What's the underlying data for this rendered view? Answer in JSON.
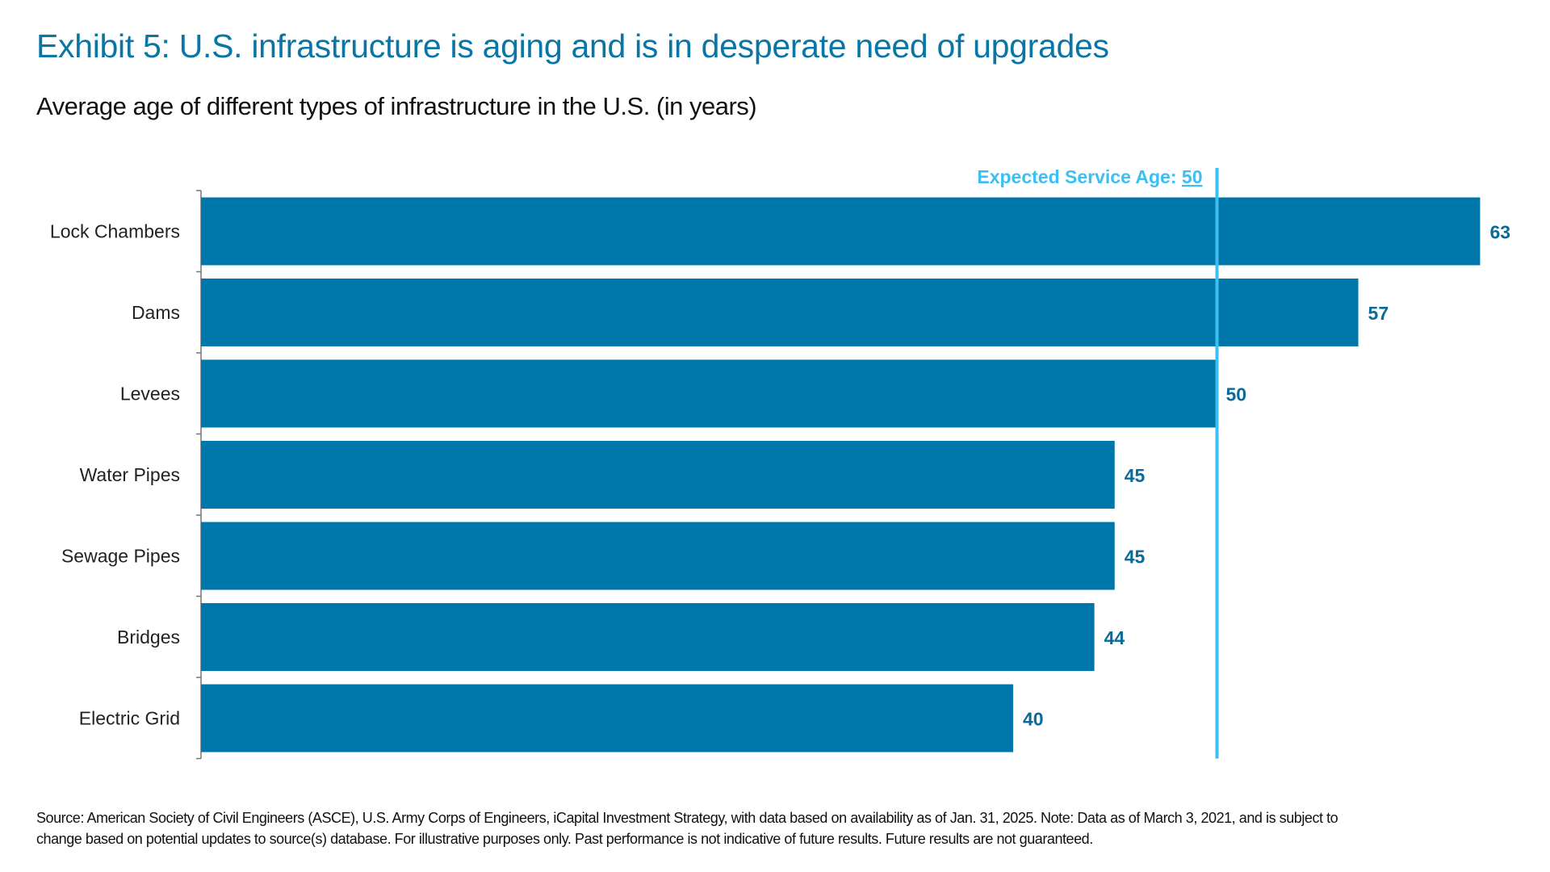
{
  "title": "Exhibit 5: U.S. infrastructure is aging and is in desperate need of upgrades",
  "subtitle": "Average age of different types of infrastructure in the U.S. (in years)",
  "footer": {
    "line1": "Source: American Society of Civil Engineers (ASCE), U.S. Army Corps of Engineers, iCapital Investment Strategy, with data based on availability as of Jan. 31, 2025. Note: Data as of March 3, 2021, and is subject to",
    "line2": "change based on potential updates to source(s) database. For illustrative purposes only. Past performance is not indicative of future results. Future results are not guaranteed."
  },
  "chart_data": {
    "type": "bar",
    "orientation": "horizontal",
    "categories": [
      "Lock Chambers",
      "Dams",
      "Levees",
      "Water Pipes",
      "Sewage Pipes",
      "Bridges",
      "Electric Grid"
    ],
    "values": [
      63,
      57,
      50,
      45,
      45,
      44,
      40
    ],
    "data_labels": true,
    "xlim": [
      0,
      63
    ],
    "grid": false,
    "reference_line": {
      "value": 50,
      "label_prefix": "Expected Service Age: ",
      "label_value": "50",
      "color": "#3dbff2"
    },
    "colors": {
      "bar": "#0077aa",
      "data_label": "#0a6a9a",
      "category_label": "#222222"
    }
  }
}
